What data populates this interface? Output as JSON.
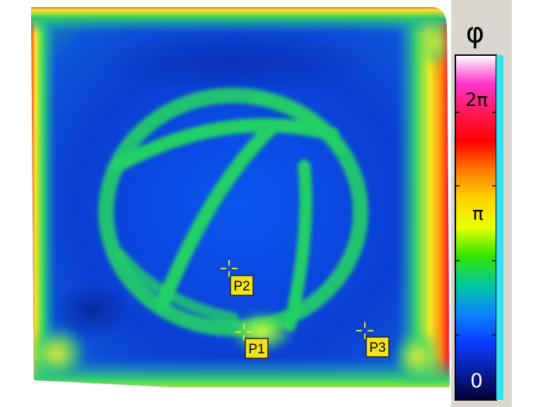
{
  "thermal_image": {
    "markers": [
      {
        "label": "P1"
      },
      {
        "label": "P2"
      },
      {
        "label": "P3"
      }
    ]
  },
  "color_scale": {
    "symbol": "φ",
    "tick_labels": {
      "top": "2π",
      "middle": "π",
      "bottom": "0"
    },
    "colors": [
      "#ffffff",
      "#ff33cc",
      "#ff1a55",
      "#ff0000",
      "#ff7a00",
      "#ffd400",
      "#e6ff00",
      "#33e600",
      "#00c8a0",
      "#0a86ff",
      "#0a3cff",
      "#0a1f9e",
      "#000033"
    ]
  },
  "palette": {
    "background_blue": "#0f35d6",
    "ring_green": "#1fd36a",
    "edge_yellow": "#f6ea1a",
    "edge_red": "#ff2a1a",
    "marker_fill": "#f3e11a"
  }
}
